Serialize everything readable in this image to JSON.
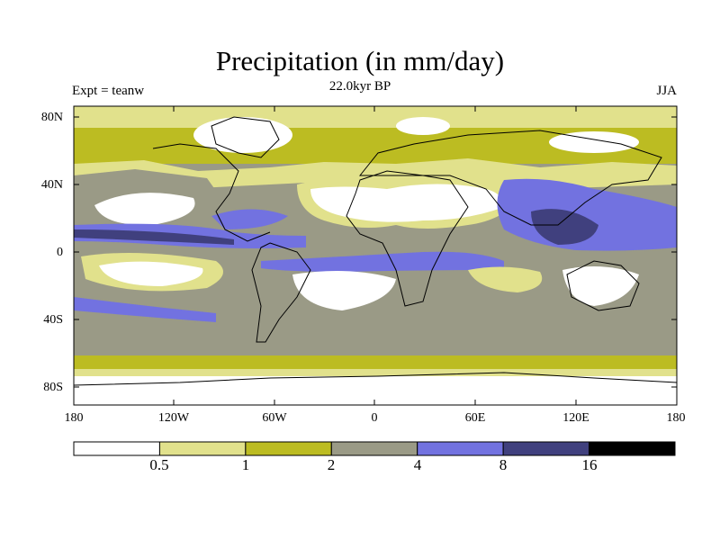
{
  "title": "Precipitation (in mm/day)",
  "subtitle": "22.0kyr BP",
  "experiment_label": "Expt = teanw",
  "season": "JJA",
  "map": {
    "projection": "cylindrical-equidistant",
    "variable": "precipitation",
    "units": "mm/day",
    "lat_labels": [
      "80N",
      "40N",
      "0",
      "40S",
      "80S"
    ],
    "lon_labels": [
      "180",
      "120W",
      "60W",
      "0",
      "60E",
      "120E",
      "180"
    ]
  },
  "colorbar": {
    "colors": [
      "#ffffff",
      "#e1e18c",
      "#bcbc22",
      "#9a9a86",
      "#7272e0",
      "#40407e",
      "#000000"
    ],
    "labels": [
      "0.5",
      "1",
      "2",
      "4",
      "8",
      "16"
    ]
  }
}
